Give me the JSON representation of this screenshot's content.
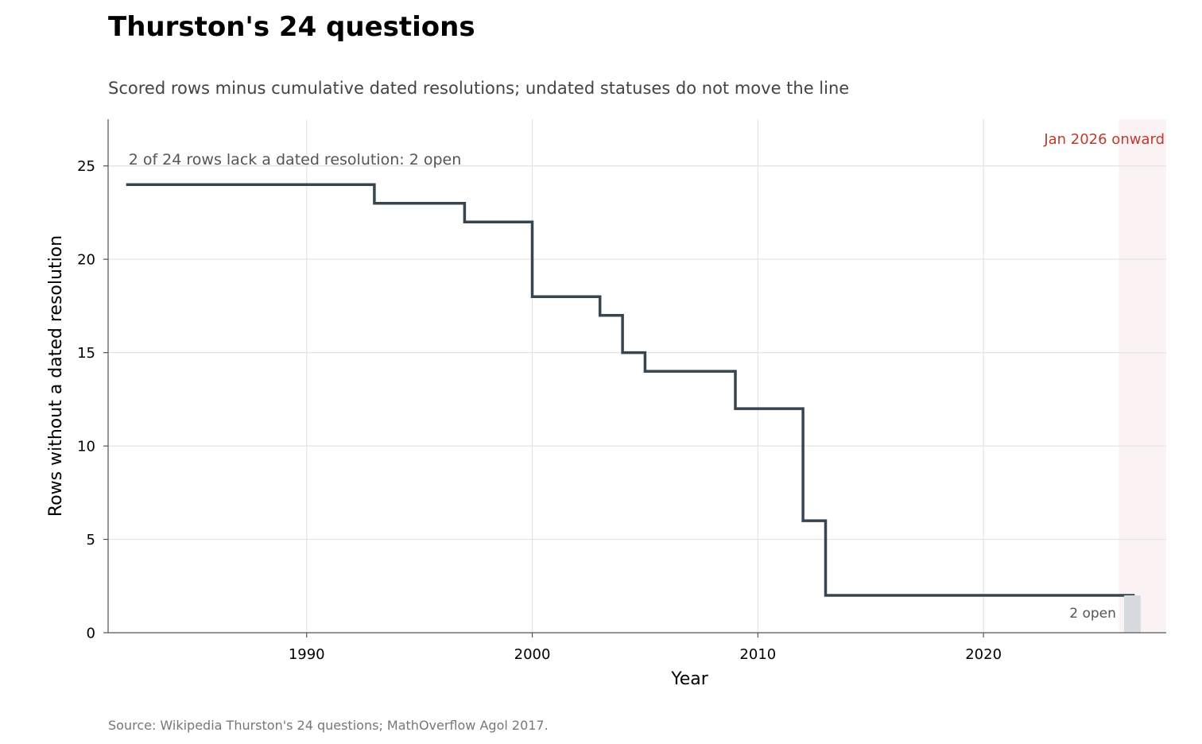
{
  "chart_data": {
    "type": "line",
    "step": true,
    "title": "Thurston's 24 questions",
    "subtitle": "Scored rows minus cumulative dated resolutions; undated statuses do not move the line",
    "xlabel": "Year",
    "ylabel": "Rows without a dated resolution",
    "xlim": [
      1981.2,
      2028.1
    ],
    "ylim": [
      0,
      27.5
    ],
    "xticks": [
      1990,
      2000,
      2010,
      2020
    ],
    "yticks": [
      0,
      5,
      10,
      15,
      20,
      25
    ],
    "grid": true,
    "series": [
      {
        "color": "#36454f",
        "points": [
          [
            1982,
            24
          ],
          [
            1993,
            24
          ],
          [
            1993,
            23
          ],
          [
            1997,
            23
          ],
          [
            1997,
            22
          ],
          [
            2000,
            22
          ],
          [
            2000,
            18
          ],
          [
            2003,
            18
          ],
          [
            2003,
            17
          ],
          [
            2004,
            17
          ],
          [
            2004,
            15
          ],
          [
            2005,
            15
          ],
          [
            2005,
            14
          ],
          [
            2009,
            14
          ],
          [
            2009,
            12
          ],
          [
            2012,
            12
          ],
          [
            2012,
            6
          ],
          [
            2013,
            6
          ],
          [
            2013,
            2
          ],
          [
            2026.7,
            2
          ]
        ]
      }
    ],
    "shaded_region": {
      "from": 2026,
      "to": 2028.1,
      "label": "Jan 2026 onward",
      "color": "#c0392b"
    },
    "bar": {
      "x": 2026.6,
      "value": 2,
      "label": "2 open",
      "color": "#d7dbe0"
    },
    "annotation": "2 of 24 rows lack a dated resolution: 2 open",
    "annotation_anchor": [
      1982,
      25.2
    ],
    "source": "Source: Wikipedia Thurston's 24 questions; MathOverflow Agol 2017."
  }
}
